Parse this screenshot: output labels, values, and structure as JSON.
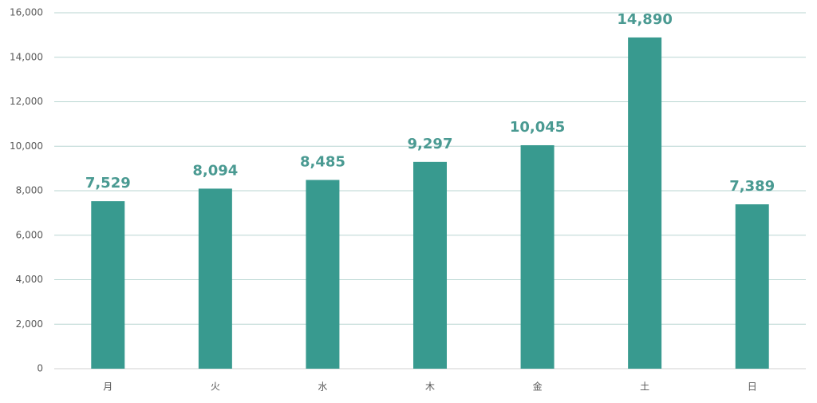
{
  "chart_data": {
    "type": "bar",
    "categories": [
      "月",
      "火",
      "水",
      "木",
      "金",
      "土",
      "日"
    ],
    "values": [
      7529,
      8094,
      8485,
      9297,
      10045,
      14890,
      7389
    ],
    "value_labels": [
      "7,529",
      "8,094",
      "8,485",
      "9,297",
      "10,045",
      "14,890",
      "7,389"
    ],
    "color": "#389a8f",
    "ylim": [
      0,
      16000
    ],
    "yticks": [
      0,
      {
        "value": 2000,
        "label": "2,000"
      },
      {
        "value": 4000,
        "label": "4,000"
      },
      {
        "value": 6000,
        "label": "6,000"
      },
      {
        "value": 8000,
        "label": "8,000"
      },
      {
        "value": 10000,
        "label": "10,000"
      },
      {
        "value": 12000,
        "label": "12,000"
      },
      {
        "value": 14000,
        "label": "14,000"
      },
      {
        "value": 16000,
        "label": "16,000"
      }
    ],
    "grid": true
  }
}
